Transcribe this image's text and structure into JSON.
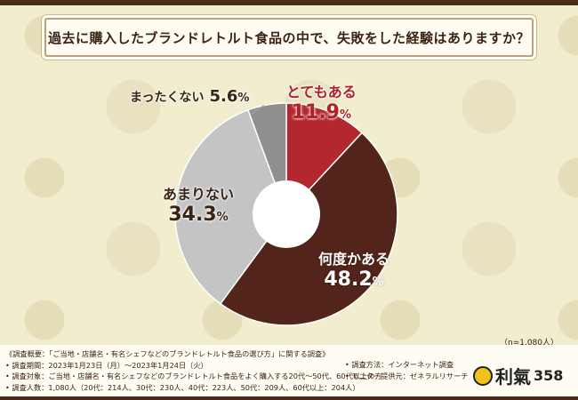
{
  "title": "過去に購入したブランドレトルト食品の中で、失敗をした経験はありますか？",
  "sample_size": "（n=1,080人）",
  "chart_data": {
    "type": "pie",
    "title": "過去に購入したブランドレトルト食品の中で、失敗をした経験はありますか？",
    "slices": [
      {
        "label": "とてもある",
        "value": 11.9,
        "display": "11.9",
        "color": "#b3282e"
      },
      {
        "label": "何度かある",
        "value": 48.2,
        "display": "48.2",
        "color": "#52241a"
      },
      {
        "label": "あまりない",
        "value": 34.3,
        "display": "34.3",
        "color": "#c4c4c4"
      },
      {
        "label": "まったくない",
        "value": 5.6,
        "display": "5.6",
        "color": "#8f8f8f"
      }
    ],
    "unit": "%"
  },
  "notes": [
    "《調査概要：「ご当地・店舗名・有名シェフなどのブランドレトルト食品の選び方」に関する調査》",
    "• 調査期間：2023年1月23日（月）～2023年1月24日（火）",
    "• 調査対象：ご当地・店舗名・有名シェフなどのブランドレトルト食品をよく購入する20代～50代、60代以上の方",
    "• 調査人数：1,080人（20代：214人、30代：230人、40代：223人、50代：209人、60代以上：204人）"
  ],
  "notes_right": [
    "• 調査方法：インターネット調査",
    "• モニター提供元：ゼネラルリサーチ"
  ],
  "logo": {
    "text": "利氣",
    "number": "358"
  }
}
